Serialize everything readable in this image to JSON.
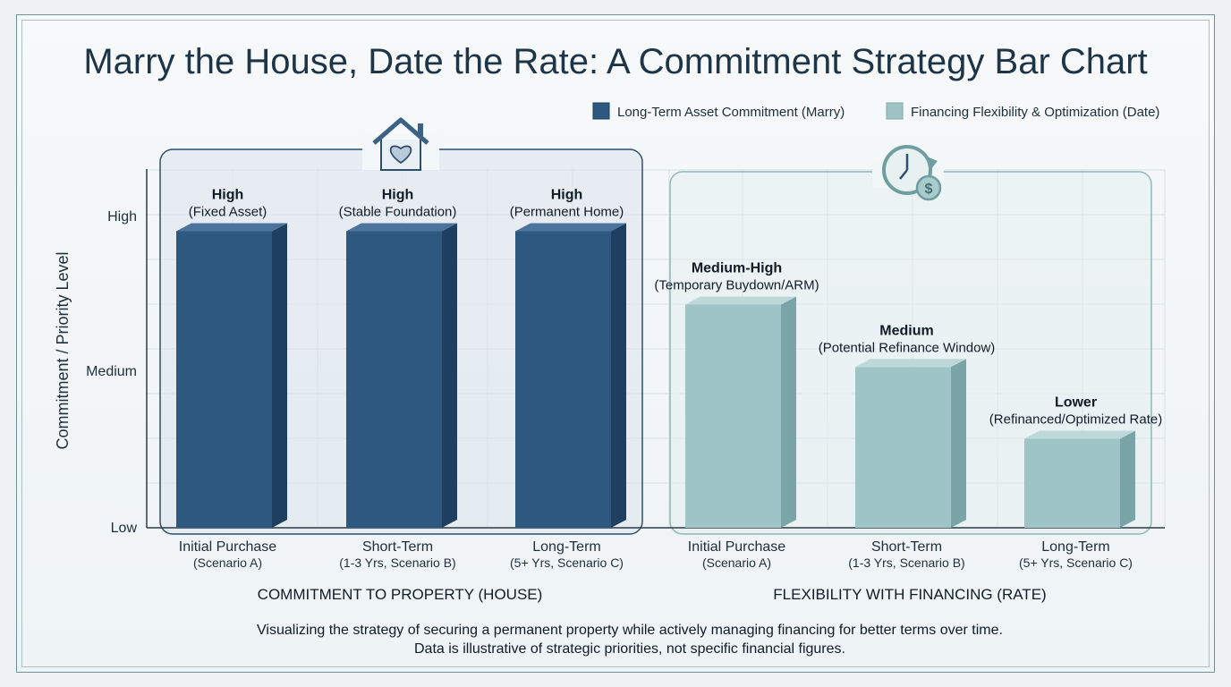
{
  "chart_data": {
    "type": "bar",
    "title": "Marry the House, Date the Rate: A Commitment Strategy Bar Chart",
    "ylabel": "Commitment / Priority Level",
    "y_ticks": [
      {
        "label": "Low",
        "value": 0
      },
      {
        "label": "Medium",
        "value": 1
      },
      {
        "label": "High",
        "value": 2
      }
    ],
    "ylim": [
      0,
      2.2
    ],
    "grid": true,
    "legend_placement": "top-right",
    "legend": [
      {
        "name": "Long-Term Asset Commitment (Marry)",
        "color": "#2f5880"
      },
      {
        "name": "Financing Flexibility & Optimization (Date)",
        "color": "#9ec4c6"
      }
    ],
    "groups": [
      {
        "label": "COMMITMENT TO PROPERTY (HOUSE)",
        "icon": "house-heart-icon",
        "series": "Long-Term Asset Commitment (Marry)",
        "bars": [
          {
            "cat": "Initial Purchase",
            "sub": "(Scenario A)",
            "value": 1.9,
            "label": "High",
            "note": "(Fixed Asset)"
          },
          {
            "cat": "Short-Term",
            "sub": "(1-3 Yrs, Scenario B)",
            "value": 1.9,
            "label": "High",
            "note": "(Stable Foundation)"
          },
          {
            "cat": "Long-Term",
            "sub": "(5+ Yrs, Scenario C)",
            "value": 1.9,
            "label": "High",
            "note": "(Permanent Home)"
          }
        ]
      },
      {
        "label": "FLEXIBILITY WITH FINANCING (RATE)",
        "icon": "clock-dollar-icon",
        "series": "Financing Flexibility & Optimization (Date)",
        "bars": [
          {
            "cat": "Initial Purchase",
            "sub": "(Scenario A)",
            "value": 1.43,
            "label": "Medium-High",
            "note": "(Temporary Buydown/ARM)"
          },
          {
            "cat": "Short-Term",
            "sub": "(1-3 Yrs, Scenario B)",
            "value": 1.03,
            "label": "Medium",
            "note": "(Potential Refinance Window)"
          },
          {
            "cat": "Long-Term",
            "sub": "(5+ Yrs, Scenario C)",
            "value": 0.57,
            "label": "Lower",
            "note": "(Refinanced/Optimized Rate)"
          }
        ]
      }
    ],
    "footnote": [
      "Visualizing the strategy of securing a permanent property while actively managing financing for better terms over time.",
      "Data is illustrative of strategic priorities, not specific financial figures."
    ]
  }
}
